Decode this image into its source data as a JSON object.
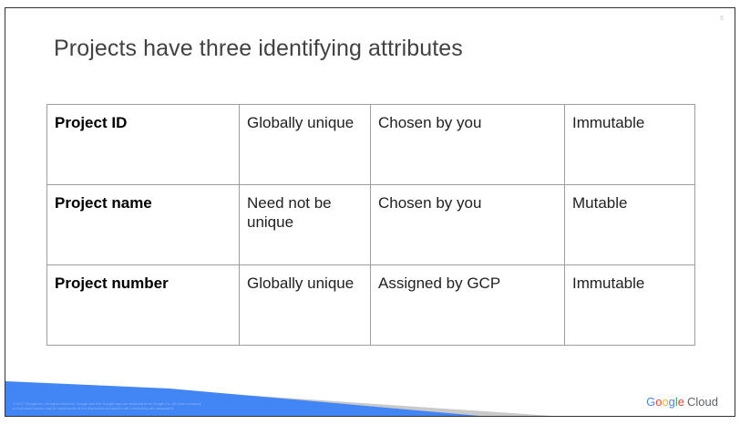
{
  "slide": {
    "page_number": "6",
    "title": "Projects have three identifying attributes"
  },
  "table": {
    "rows": [
      [
        "Project ID",
        "Globally unique",
        "Chosen by you",
        "Immutable"
      ],
      [
        "Project name",
        "Need not be unique",
        "Chosen by you",
        "Mutable"
      ],
      [
        "Project number",
        "Globally unique",
        "Assigned by GCP",
        "Immutable"
      ]
    ]
  },
  "footer": {
    "fineprint_line1": "© 2017 Google Inc. All rights reserved. Google and the Google logo are trademarks of Google Inc. All other company",
    "fineprint_line2": "and product names may be trademarks of the respective companies with which they are associated.",
    "logo": {
      "letters": [
        {
          "ch": "G",
          "color": "#4285f4"
        },
        {
          "ch": "o",
          "color": "#ea4335"
        },
        {
          "ch": "o",
          "color": "#fbbc05"
        },
        {
          "ch": "g",
          "color": "#4285f4"
        },
        {
          "ch": "l",
          "color": "#34a853"
        },
        {
          "ch": "e",
          "color": "#ea4335"
        }
      ],
      "suffix": "Cloud"
    },
    "colors": {
      "blue": "#4285f4",
      "gray": "#c9c9c9"
    }
  }
}
